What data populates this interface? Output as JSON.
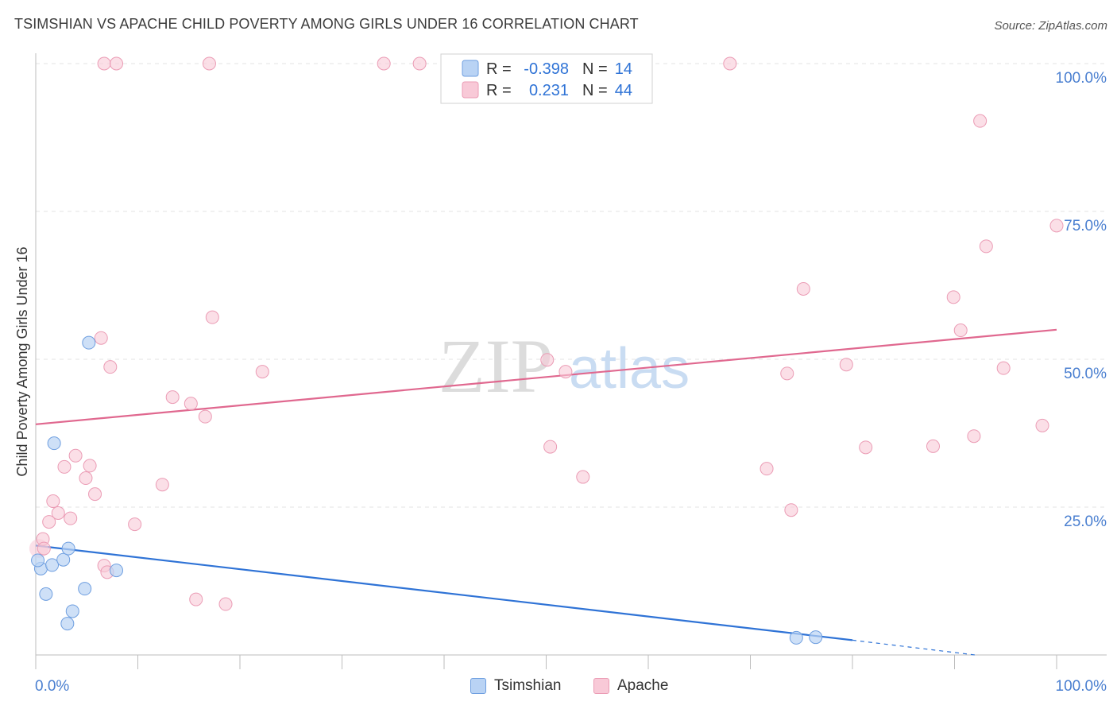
{
  "header": {
    "title": "TSIMSHIAN VS APACHE CHILD POVERTY AMONG GIRLS UNDER 16 CORRELATION CHART",
    "source": "Source: ZipAtlas.com"
  },
  "colors": {
    "tsimshian_fill": "#b9d3f4",
    "tsimshian_stroke": "#6f9fe0",
    "tsimshian_line": "#2f73d6",
    "apache_fill": "#f8c9d7",
    "apache_stroke": "#eb9cb5",
    "apache_line": "#e0688f",
    "tick_blue": "#4a7fd0",
    "grid": "#e3e3e3"
  },
  "watermark": {
    "zip": "ZIP",
    "atlas": "atlas"
  },
  "legend": {
    "rows": [
      {
        "r_label": "R =",
        "r_value": "-0.398",
        "n_label": "N =",
        "n_value": "14"
      },
      {
        "r_label": "R =",
        "r_value": "0.231",
        "n_label": "N =",
        "n_value": "44"
      }
    ]
  },
  "bottom_legend": {
    "tsimshian": "Tsimshian",
    "apache": "Apache"
  },
  "chart_data": {
    "type": "scatter",
    "title": "TSIMSHIAN VS APACHE CHILD POVERTY AMONG GIRLS UNDER 16 CORRELATION CHART",
    "xlabel": "",
    "ylabel": "Child Poverty Among Girls Under 16",
    "xlim": [
      0,
      100
    ],
    "ylim": [
      0,
      100
    ],
    "x_tick_labels": [
      "0.0%",
      "100.0%"
    ],
    "y_ticks": [
      25,
      50,
      75,
      100
    ],
    "y_tick_labels": [
      "25.0%",
      "50.0%",
      "75.0%",
      "100.0%"
    ],
    "grid": true,
    "legend_position": "top-center",
    "series": [
      {
        "name": "Tsimshian",
        "r": -0.398,
        "n": 14,
        "points": [
          [
            0.5,
            14.6
          ],
          [
            0.2,
            16.0
          ],
          [
            1.0,
            10.3
          ],
          [
            1.6,
            15.2
          ],
          [
            1.8,
            35.8
          ],
          [
            2.7,
            16.1
          ],
          [
            3.2,
            18.0
          ],
          [
            3.1,
            5.3
          ],
          [
            3.6,
            7.4
          ],
          [
            4.8,
            11.2
          ],
          [
            5.2,
            52.8
          ],
          [
            7.9,
            14.3
          ],
          [
            74.5,
            2.9
          ],
          [
            76.4,
            3.0
          ]
        ],
        "trend": {
          "x": [
            0,
            80
          ],
          "y": [
            18.5,
            2.5
          ],
          "dashed_to": [
            92,
            0.0
          ]
        }
      },
      {
        "name": "Apache",
        "r": 0.231,
        "n": 44,
        "points": [
          [
            0.7,
            19.6
          ],
          [
            0.8,
            18.0
          ],
          [
            1.3,
            22.5
          ],
          [
            1.7,
            26.0
          ],
          [
            2.2,
            24.0
          ],
          [
            2.8,
            31.8
          ],
          [
            3.4,
            23.1
          ],
          [
            3.9,
            33.7
          ],
          [
            4.9,
            29.9
          ],
          [
            5.3,
            32.0
          ],
          [
            5.8,
            27.2
          ],
          [
            6.4,
            53.6
          ],
          [
            7.3,
            48.7
          ],
          [
            6.7,
            15.1
          ],
          [
            7.0,
            14.0
          ],
          [
            9.7,
            22.1
          ],
          [
            12.4,
            28.8
          ],
          [
            13.4,
            43.6
          ],
          [
            15.2,
            42.5
          ],
          [
            15.7,
            9.4
          ],
          [
            16.6,
            40.3
          ],
          [
            17.3,
            57.1
          ],
          [
            18.6,
            8.6
          ],
          [
            22.2,
            47.9
          ],
          [
            50.1,
            49.9
          ],
          [
            50.4,
            35.2
          ],
          [
            51.9,
            47.9
          ],
          [
            53.6,
            30.1
          ],
          [
            68.0,
            100.0
          ],
          [
            71.6,
            31.5
          ],
          [
            73.6,
            47.6
          ],
          [
            74.0,
            24.5
          ],
          [
            75.2,
            61.9
          ],
          [
            79.4,
            49.1
          ],
          [
            81.3,
            35.1
          ],
          [
            87.9,
            35.3
          ],
          [
            89.9,
            60.5
          ],
          [
            90.6,
            54.9
          ],
          [
            91.9,
            37.0
          ],
          [
            92.5,
            90.3
          ],
          [
            93.1,
            69.1
          ],
          [
            94.8,
            48.5
          ],
          [
            98.6,
            38.8
          ],
          [
            100.0,
            72.6
          ]
        ],
        "top_points": [
          [
            6.7,
            100.0
          ],
          [
            7.9,
            100.0
          ],
          [
            17.0,
            100.0
          ],
          [
            34.1,
            100.0
          ],
          [
            37.6,
            100.0
          ]
        ],
        "trend": {
          "x": [
            0,
            100
          ],
          "y": [
            39.0,
            55.0
          ]
        }
      }
    ]
  }
}
